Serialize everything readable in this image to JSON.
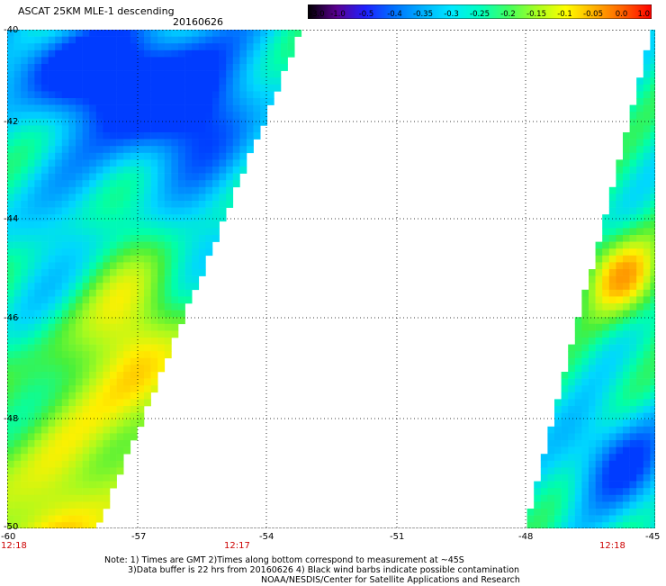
{
  "header": {
    "title": "ASCAT 25KM MLE-1 descending",
    "date": "20160626"
  },
  "colorbar": {
    "labels": [
      "-3.0",
      "-1.0",
      "-0.5",
      "-0.4",
      "-0.35",
      "-0.3",
      "-0.25",
      "-0.2",
      "-0.15",
      "-0.1",
      "-0.05",
      "0.0",
      "1.0"
    ],
    "colors": [
      "#000000",
      "#5a0090",
      "#2020ff",
      "#0070ff",
      "#00b0ff",
      "#00e8ff",
      "#00ffc0",
      "#40ff60",
      "#a8ff20",
      "#ffff00",
      "#ffb000",
      "#ff6000",
      "#ff0000"
    ]
  },
  "axes": {
    "lat_labels": [
      "-40",
      "-42",
      "-44",
      "-46",
      "-48",
      "-50"
    ],
    "lon_labels": [
      "-60",
      "-57",
      "-54",
      "-51",
      "-48",
      "-45"
    ],
    "time_labels": [
      "12:18",
      "12:17",
      "12:18"
    ],
    "time_color": "#cc0000"
  },
  "notes": [
    "Note: 1) Times are GMT 2)Times along bottom correspond to measurement at ~45S",
    "3)Data buffer is 22 hrs from 20160626 4) Black wind barbs indicate possible contamination",
    "NOAA/NESDIS/Center for Satellite Applications and Research"
  ]
}
